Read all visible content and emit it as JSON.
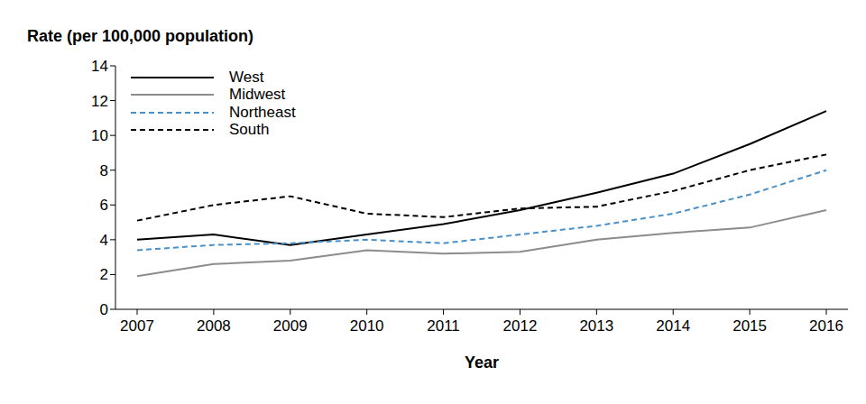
{
  "chart_data": {
    "type": "line",
    "y_label": "Rate (per 100,000 population)",
    "x_label": "Year",
    "categories": [
      "2007",
      "2008",
      "2009",
      "2010",
      "2011",
      "2012",
      "2013",
      "2014",
      "2015",
      "2016"
    ],
    "series": [
      {
        "name": "West",
        "color": "#000000",
        "line_style": "solid",
        "values": [
          4.0,
          4.3,
          3.7,
          4.3,
          4.9,
          5.7,
          6.7,
          7.8,
          9.5,
          11.4
        ]
      },
      {
        "name": "Midwest",
        "color": "#8c8c8c",
        "line_style": "solid",
        "values": [
          1.9,
          2.6,
          2.8,
          3.4,
          3.2,
          3.3,
          4.0,
          4.4,
          4.7,
          5.7
        ]
      },
      {
        "name": "Northeast",
        "color": "#4a90c8",
        "line_style": "dashed",
        "values": [
          3.4,
          3.7,
          3.8,
          4.0,
          3.8,
          4.3,
          4.8,
          5.5,
          6.6,
          8.0
        ]
      },
      {
        "name": "South",
        "color": "#000000",
        "line_style": "dashed",
        "values": [
          5.1,
          6.0,
          6.5,
          5.5,
          5.3,
          5.8,
          5.9,
          6.8,
          8.0,
          8.9
        ]
      }
    ],
    "ylim": [
      0,
      14
    ],
    "yticks": [
      0,
      2,
      4,
      6,
      8,
      10,
      12,
      14
    ],
    "legend": "top-left"
  }
}
